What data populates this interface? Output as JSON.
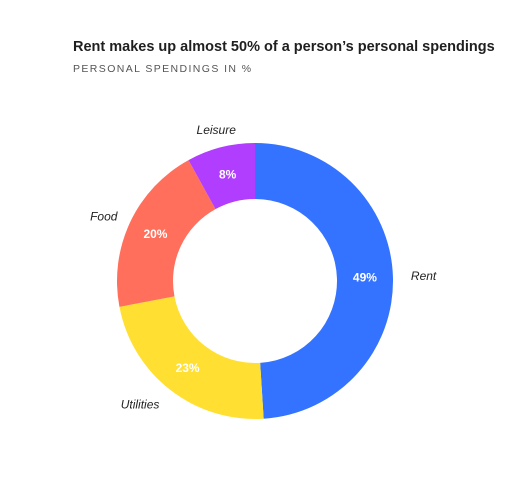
{
  "chart_data": {
    "type": "pie",
    "variant": "donut",
    "title": "Rent makes up almost 50% of a person’s personal spendings",
    "subtitle": "PERSONAL SPENDINGS IN %",
    "slices": [
      {
        "label": "Rent",
        "value": 49,
        "value_label": "49%",
        "color": "#3473ff"
      },
      {
        "label": "Utilities",
        "value": 23,
        "value_label": "23%",
        "color": "#ffe032"
      },
      {
        "label": "Food",
        "value": 20,
        "value_label": "20%",
        "color": "#ff6f5b"
      },
      {
        "label": "Leisure",
        "value": 8,
        "value_label": "8%",
        "color": "#b13dff"
      }
    ]
  }
}
